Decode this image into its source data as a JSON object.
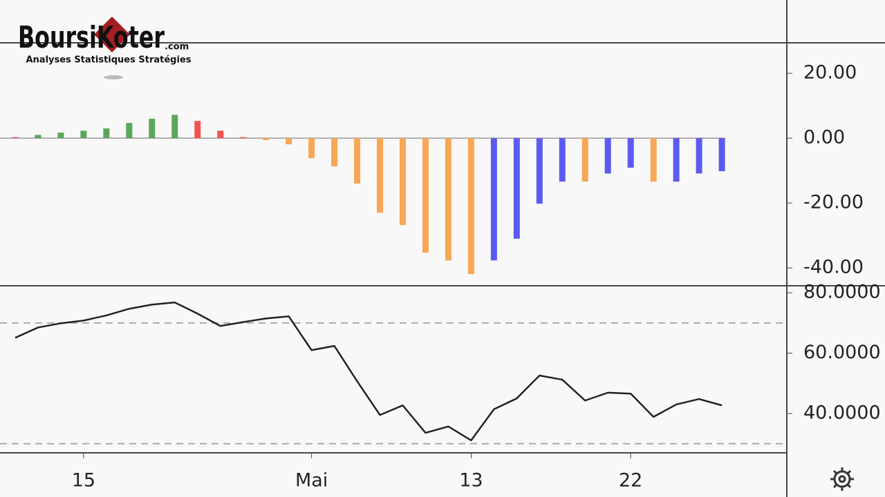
{
  "logo": {
    "name": "BoursiKoter",
    "domain": ".com",
    "tagline": "Analyses Statistiques Stratégies"
  },
  "chart_data": [
    {
      "type": "bar",
      "values": [
        0.3,
        1,
        1.7,
        2.3,
        3,
        4.7,
        6,
        7.2,
        5.3,
        2.3,
        0.3,
        -0.6,
        -1.9,
        -6.2,
        -8.7,
        -14,
        -23,
        -26.8,
        -35.3,
        -37.7,
        -41.9,
        -37.7,
        -31,
        -20.2,
        -13.4,
        -13.4,
        -10.9,
        -9.1,
        -13.4,
        -13.4,
        -10.9,
        -10.2
      ],
      "colors": [
        "#ef5350",
        "#5aa75a",
        "#5aa75a",
        "#5aa75a",
        "#5aa75a",
        "#5aa75a",
        "#5aa75a",
        "#5aa75a",
        "#ef5350",
        "#ef5350",
        "#ef5350",
        "#f7a756",
        "#f7a756",
        "#f7a756",
        "#f7a756",
        "#f7a756",
        "#f7a756",
        "#f7a756",
        "#f7a756",
        "#f7a756",
        "#f7a756",
        "#5b5bf0",
        "#5b5bf0",
        "#5b5bf0",
        "#5b5bf0",
        "#f7a756",
        "#5b5bf0",
        "#5b5bf0",
        "#f7a756",
        "#5b5bf0",
        "#5b5bf0",
        "#5b5bf0"
      ],
      "ylim": [
        -45.3,
        29.4
      ],
      "yticks": [
        {
          "value": 20,
          "label": "20.00"
        },
        {
          "value": 0,
          "label": "0.00"
        },
        {
          "value": -20,
          "label": "-20.00"
        },
        {
          "value": -40,
          "label": "-40.00"
        }
      ]
    },
    {
      "type": "line",
      "categories": [
        null,
        null,
        null,
        "15",
        null,
        null,
        null,
        null,
        null,
        null,
        null,
        null,
        null,
        "Mai",
        null,
        null,
        null,
        null,
        null,
        null,
        "13",
        null,
        null,
        null,
        null,
        null,
        null,
        "22",
        null,
        null,
        null,
        null
      ],
      "values": [
        65.1,
        68.5,
        69.9,
        70.8,
        72.5,
        74.7,
        76.1,
        76.8,
        73.1,
        69,
        70.3,
        71.5,
        72.2,
        61,
        62.4,
        50.7,
        39.5,
        42.7,
        33.6,
        35.7,
        31.1,
        41.4,
        45,
        52.6,
        51.2,
        44.3,
        46.9,
        46.6,
        38.9,
        43,
        44.8,
        42.7
      ],
      "color": "#222222",
      "ylim": [
        27.2,
        82.1
      ],
      "yticks": [
        {
          "value": 80,
          "label": "80.0000"
        },
        {
          "value": 60,
          "label": "60.0000"
        },
        {
          "value": 40,
          "label": "40.0000"
        }
      ],
      "hlines": [
        70,
        30
      ]
    }
  ]
}
